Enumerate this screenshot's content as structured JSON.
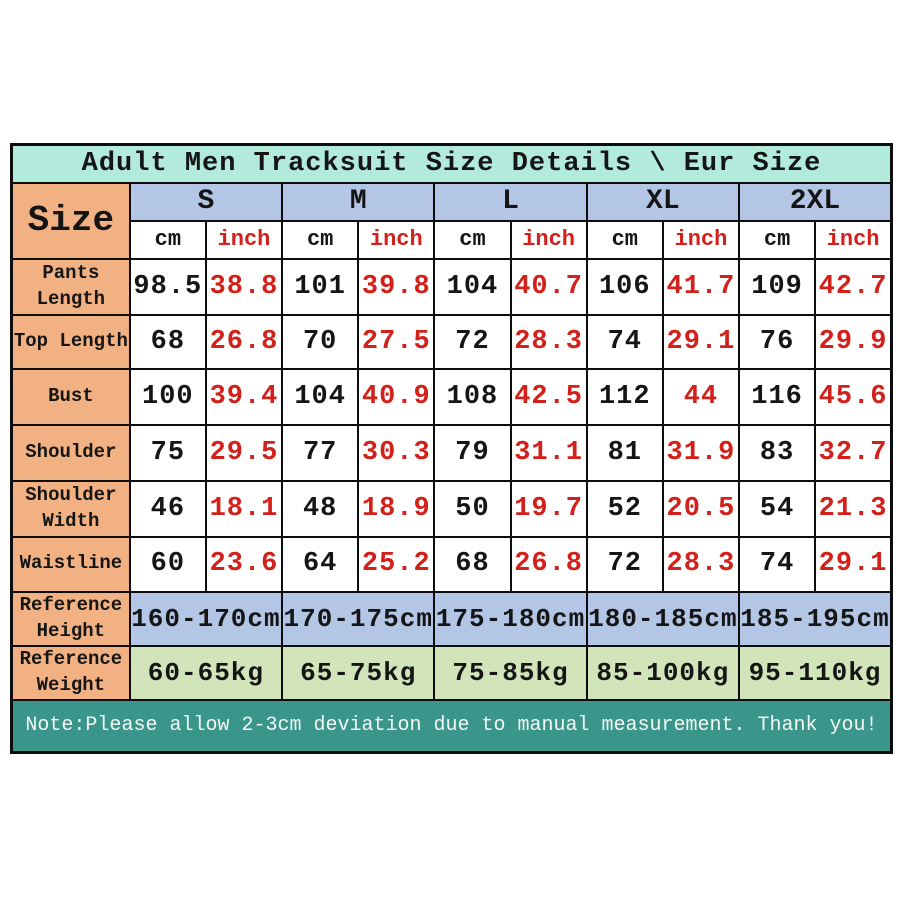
{
  "title": "Adult Men Tracksuit Size Details \\ Eur Size",
  "corner_label": "Size",
  "sizes": [
    "S",
    "M",
    "L",
    "XL",
    "2XL"
  ],
  "units": {
    "cm": "cm",
    "inch": "inch"
  },
  "rows": [
    {
      "label": "Pants Length",
      "values": [
        {
          "cm": "98.5",
          "inch": "38.8"
        },
        {
          "cm": "101",
          "inch": "39.8"
        },
        {
          "cm": "104",
          "inch": "40.7"
        },
        {
          "cm": "106",
          "inch": "41.7"
        },
        {
          "cm": "109",
          "inch": "42.7"
        }
      ]
    },
    {
      "label": "Top Length",
      "values": [
        {
          "cm": "68",
          "inch": "26.8"
        },
        {
          "cm": "70",
          "inch": "27.5"
        },
        {
          "cm": "72",
          "inch": "28.3"
        },
        {
          "cm": "74",
          "inch": "29.1"
        },
        {
          "cm": "76",
          "inch": "29.9"
        }
      ]
    },
    {
      "label": "Bust",
      "values": [
        {
          "cm": "100",
          "inch": "39.4"
        },
        {
          "cm": "104",
          "inch": "40.9"
        },
        {
          "cm": "108",
          "inch": "42.5"
        },
        {
          "cm": "112",
          "inch": "44"
        },
        {
          "cm": "116",
          "inch": "45.6"
        }
      ]
    },
    {
      "label": "Shoulder",
      "values": [
        {
          "cm": "75",
          "inch": "29.5"
        },
        {
          "cm": "77",
          "inch": "30.3"
        },
        {
          "cm": "79",
          "inch": "31.1"
        },
        {
          "cm": "81",
          "inch": "31.9"
        },
        {
          "cm": "83",
          "inch": "32.7"
        }
      ]
    },
    {
      "label": "Shoulder Width",
      "values": [
        {
          "cm": "46",
          "inch": "18.1"
        },
        {
          "cm": "48",
          "inch": "18.9"
        },
        {
          "cm": "50",
          "inch": "19.7"
        },
        {
          "cm": "52",
          "inch": "20.5"
        },
        {
          "cm": "54",
          "inch": "21.3"
        }
      ]
    },
    {
      "label": "Waistline",
      "values": [
        {
          "cm": "60",
          "inch": "23.6"
        },
        {
          "cm": "64",
          "inch": "25.2"
        },
        {
          "cm": "68",
          "inch": "26.8"
        },
        {
          "cm": "72",
          "inch": "28.3"
        },
        {
          "cm": "74",
          "inch": "29.1"
        }
      ]
    }
  ],
  "reference_height": {
    "label": "Reference Height",
    "values": [
      "160-170cm",
      "170-175cm",
      "175-180cm",
      "180-185cm",
      "185-195cm"
    ]
  },
  "reference_weight": {
    "label": "Reference Weight",
    "values": [
      "60-65kg",
      "65-75kg",
      "75-85kg",
      "85-100kg",
      "95-110kg"
    ]
  },
  "note": "Note:Please allow 2-3cm deviation due to manual measurement. Thank you!",
  "colors": {
    "title_bg": "#b2ebdc",
    "label_bg": "#f2b183",
    "size_header_bg": "#b4c6e5",
    "ref_height_bg": "#b4c6e5",
    "ref_weight_bg": "#d2e4ba",
    "note_bg": "#3a968a",
    "inch_color": "#d2201a",
    "text_color": "#151515",
    "note_text_color": "#f2f8f5",
    "border_color": "#0d0d0d"
  }
}
